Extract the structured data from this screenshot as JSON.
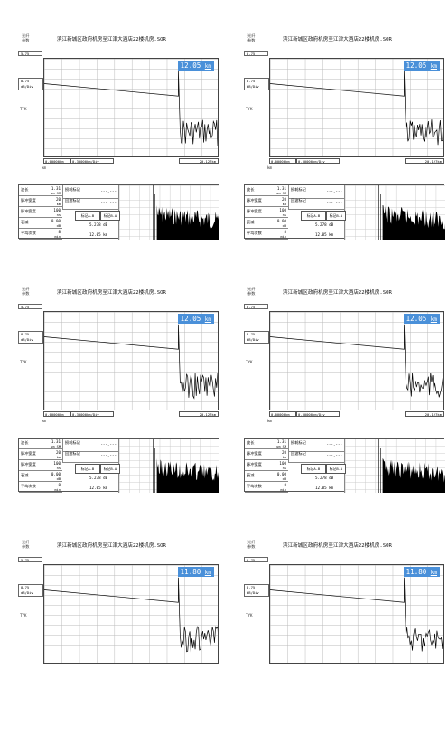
{
  "page": {
    "title": "滨江新城区政府机房至江津大酒店22楼机房.SOR",
    "side_label": "光纤参数",
    "range_label": "5.75",
    "scale_top": "8.75",
    "scale_bottom": "dB/Div",
    "trace_label": "TYK",
    "km_label": "km",
    "panels": [
      {
        "distance": "12.05",
        "unit": "km",
        "bar1": "0.00000km",
        "bar2": "0.30000km/Div",
        "bar3": "20.127km",
        "last_label": "平均损耗",
        "last_value": "1.48000",
        "last_value2": "0.289"
      },
      {
        "distance": "12.05",
        "unit": "km",
        "bar1": "0.00000km",
        "bar2": "0.30000km/Div",
        "bar3": "20.127km",
        "last_label": "平均损耗",
        "last_value": "1.48000",
        "last_value2": "0.289"
      },
      {
        "distance": "12.05",
        "unit": "km",
        "bar1": "0.00000km",
        "bar2": "0.30000km/Div",
        "bar3": "20.127km",
        "last_label": "折射率",
        "last_value": "1.480",
        "last_value2": "0.289"
      },
      {
        "distance": "12.05",
        "unit": "km",
        "bar1": "0.00000km",
        "bar2": "0.30000km/Div",
        "bar3": "20.127km",
        "last_label": "折射率",
        "last_value": "1.480",
        "last_value2": "0.317"
      },
      {
        "distance": "11.80",
        "unit": "km"
      },
      {
        "distance": "11.80",
        "unit": "km"
      }
    ],
    "table": {
      "rows": [
        {
          "k": "波长",
          "v": "1.31",
          "u": "um SM"
        },
        {
          "k": "脉冲宽度",
          "v": "20",
          "u": "km"
        },
        {
          "k": "脉冲宽度",
          "v": "100",
          "u": "ns"
        },
        {
          "k": "衰减",
          "v": "0.00",
          "u": "dB"
        },
        {
          "k": "平均次数",
          "v": "8",
          "u": "min"
        }
      ],
      "ev1": "损耗标记",
      "ev2": "回波标记",
      "dash": "---.---",
      "marker": "标记A-B",
      "ab": "标记B-A",
      "loss": "5.278 dB",
      "dist": "12.05 km",
      "unit_db": "dB/km"
    }
  }
}
